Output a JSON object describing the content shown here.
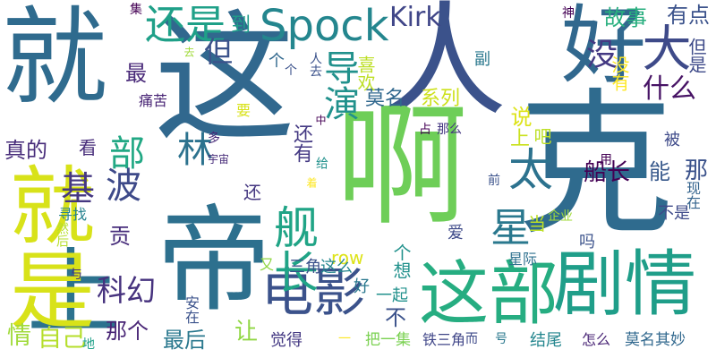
{
  "words": [
    {
      "text": "就",
      "color": "#2f6b8e"
    },
    {
      "text": "这",
      "color": "#31688e"
    },
    {
      "text": "人",
      "color": "#3b528b"
    },
    {
      "text": "好",
      "color": "#31688e"
    },
    {
      "text": "克",
      "color": "#2f6b8e"
    },
    {
      "text": "啊",
      "color": "#6ece58"
    },
    {
      "text": "帝",
      "color": "#2d708e"
    },
    {
      "text": "上",
      "color": "#2c728e"
    },
    {
      "text": "就是",
      "color": "#d8e219"
    },
    {
      "text": "剧情",
      "color": "#1f9e89"
    },
    {
      "text": "这部",
      "color": "#26ad81"
    },
    {
      "text": "电影",
      "color": "#3b528b"
    },
    {
      "text": "大",
      "color": "#3e4a89"
    },
    {
      "text": "太",
      "color": "#2c728e"
    },
    {
      "text": "Spock",
      "color": "#24868e"
    },
    {
      "text": "还是",
      "color": "#1fa088"
    },
    {
      "text": "Kirk",
      "color": "#404688"
    },
    {
      "text": "导演",
      "color": "#21918c"
    },
    {
      "text": "舰长",
      "color": "#20a486"
    },
    {
      "text": "星",
      "color": "#2a788e"
    },
    {
      "text": "部",
      "color": "#22a884"
    },
    {
      "text": "基",
      "color": "#453781"
    },
    {
      "text": "波",
      "color": "#3e4a89"
    },
    {
      "text": "林",
      "color": "#2c728e"
    },
    {
      "text": "科幻",
      "color": "#46327e"
    },
    {
      "text": "没",
      "color": "#443983"
    },
    {
      "text": "但",
      "color": "#3b528b"
    },
    {
      "text": "最",
      "color": "#482878"
    },
    {
      "text": "故事",
      "color": "#29af7f"
    },
    {
      "text": "什么",
      "color": "#471365"
    },
    {
      "text": "有点",
      "color": "#3b528b"
    },
    {
      "text": "船长",
      "color": "#440154"
    },
    {
      "text": "能",
      "color": "#38598c"
    },
    {
      "text": "那",
      "color": "#3b528b"
    },
    {
      "text": "自己",
      "color": "#b5de2b"
    },
    {
      "text": "情",
      "color": "#a0da39"
    },
    {
      "text": "最后",
      "color": "#2a788e"
    },
    {
      "text": "那个",
      "color": "#482475"
    },
    {
      "text": "让",
      "color": "#90d743"
    },
    {
      "text": "不",
      "color": "#3b528b"
    },
    {
      "text": "真的",
      "color": "#472c7a"
    },
    {
      "text": "莫名",
      "color": "#31688e"
    },
    {
      "text": "系列",
      "color": "#cde11d"
    },
    {
      "text": "说",
      "color": "#dde318"
    },
    {
      "text": "上",
      "color": "#cae11f"
    },
    {
      "text": "吧",
      "color": "#bddf26"
    },
    {
      "text": "还有",
      "color": "#443983"
    },
    {
      "text": "到",
      "color": "#1e9c89"
    },
    {
      "text": "贡",
      "color": "#472d7b"
    },
    {
      "text": "row",
      "color": "#dde318"
    },
    {
      "text": "三角",
      "color": "#3b528b"
    },
    {
      "text": "这么",
      "color": "#24868e"
    },
    {
      "text": "个想",
      "color": "#21918c"
    },
    {
      "text": "当",
      "color": "#bddf26"
    },
    {
      "text": "被",
      "color": "#3e4a89"
    },
    {
      "text": "不是",
      "color": "#3e4a89"
    },
    {
      "text": "现在",
      "color": "#33638d"
    },
    {
      "text": "看",
      "color": "#472c7a"
    },
    {
      "text": "还",
      "color": "#453781"
    },
    {
      "text": "一起",
      "color": "#21918c"
    },
    {
      "text": "觉得",
      "color": "#443983"
    },
    {
      "text": "把一集",
      "color": "#7ad151"
    },
    {
      "text": "铁三角",
      "color": "#404688"
    },
    {
      "text": "结尾",
      "color": "#24868e"
    },
    {
      "text": "怎么",
      "color": "#482475"
    },
    {
      "text": "莫名其妙",
      "color": "#31688e"
    },
    {
      "text": "爱",
      "color": "#3e4a89"
    },
    {
      "text": "星际",
      "color": "#2d708e"
    },
    {
      "text": "企业",
      "color": "#a0da39"
    },
    {
      "text": "吗",
      "color": "#3b528b"
    },
    {
      "text": "寻找",
      "color": "#26828e"
    },
    {
      "text": "集",
      "color": "#440154"
    },
    {
      "text": "神",
      "color": "#440154"
    },
    {
      "text": "喜欢",
      "color": "#bddf26"
    },
    {
      "text": "没有",
      "color": "#fde725"
    },
    {
      "text": "但是",
      "color": "#3e4a89"
    },
    {
      "text": "个",
      "color": "#31688e"
    },
    {
      "text": "痛苦",
      "color": "#482475"
    },
    {
      "text": "安在",
      "color": "#3b528b"
    },
    {
      "text": "然后",
      "color": "#b5de2b"
    },
    {
      "text": "与",
      "color": "#46327e"
    },
    {
      "text": "又",
      "color": "#90d743"
    },
    {
      "text": "副",
      "color": "#2a788e"
    },
    {
      "text": "要",
      "color": "#d8e219"
    },
    {
      "text": "多",
      "color": "#482878"
    },
    {
      "text": "宇宙",
      "color": "#472c7a"
    },
    {
      "text": "给",
      "color": "#21918c"
    },
    {
      "text": "中",
      "color": "#440154"
    },
    {
      "text": "用",
      "color": "#440154"
    },
    {
      "text": "前",
      "color": "#3b528b"
    },
    {
      "text": "而",
      "color": "#3e4a89"
    },
    {
      "text": "号",
      "color": "#2a788e"
    },
    {
      "text": "一",
      "color": "#fde725"
    },
    {
      "text": "地",
      "color": "#1fa088"
    },
    {
      "text": "那么",
      "color": "#453781"
    },
    {
      "text": "人去",
      "color": "#3b528b"
    },
    {
      "text": "个",
      "color": "#3b528b"
    },
    {
      "text": "着",
      "color": "#fde725"
    },
    {
      "text": "占",
      "color": "#440154"
    },
    {
      "text": "去",
      "color": "#a0da39"
    },
    {
      "text": "好",
      "color": "#2a788e"
    }
  ]
}
